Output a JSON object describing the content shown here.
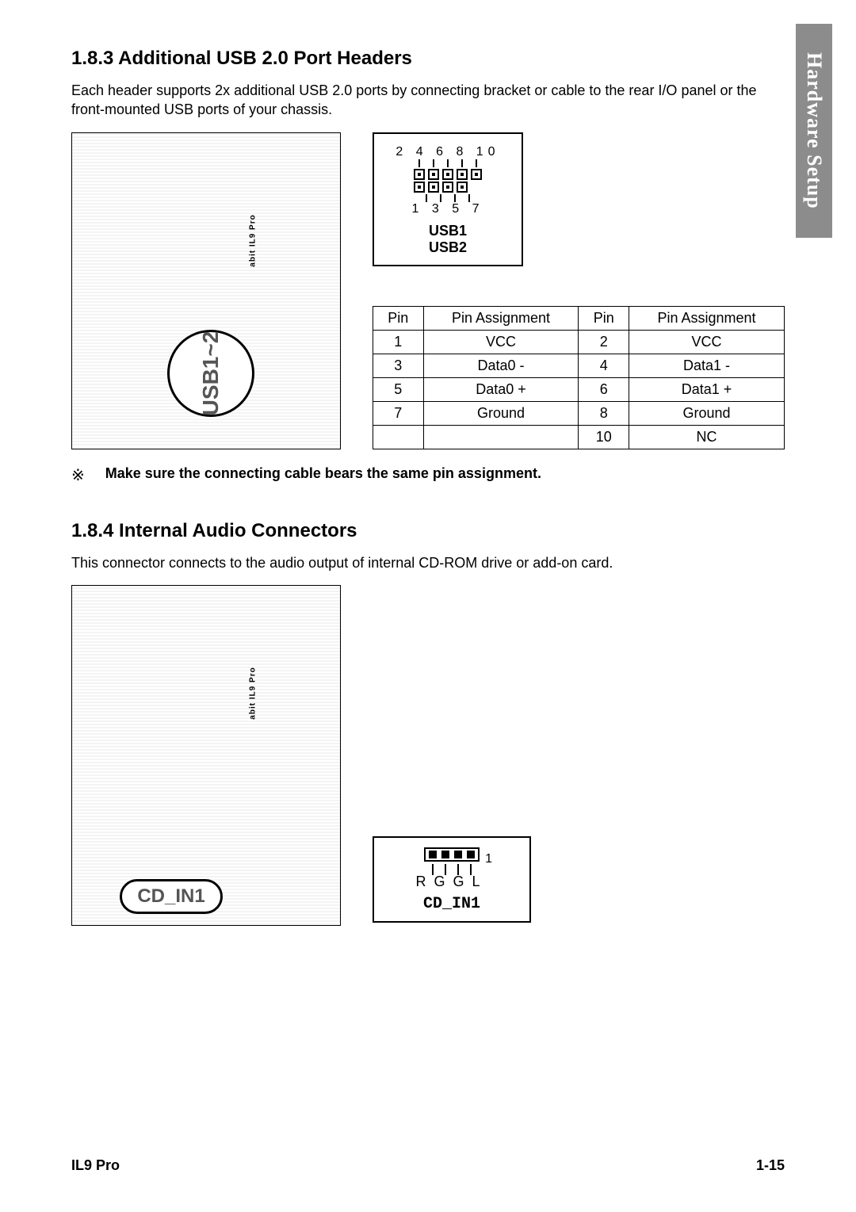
{
  "side_tab": "Hardware Setup",
  "section1": {
    "heading": "1.8.3 Additional USB 2.0 Port Headers",
    "body": "Each header supports 2x additional USB 2.0 ports by connecting bracket or cable to the rear I/O panel or the front-mounted USB ports of your chassis.",
    "callout_label": "USB1~2",
    "mobo_label": "abit IL9 Pro",
    "header_diagram": {
      "top_nums": "2 4 6 8 10",
      "bot_nums": "1 3 5 7",
      "name1": "USB1",
      "name2": "USB2"
    },
    "pin_table": {
      "columns": [
        "Pin",
        "Pin Assignment",
        "Pin",
        "Pin Assignment"
      ],
      "rows": [
        [
          "1",
          "VCC",
          "2",
          "VCC"
        ],
        [
          "3",
          "Data0 -",
          "4",
          "Data1 -"
        ],
        [
          "5",
          "Data0 +",
          "6",
          "Data1 +"
        ],
        [
          "7",
          "Ground",
          "8",
          "Ground"
        ],
        [
          "",
          "",
          "10",
          "NC"
        ]
      ]
    },
    "note_symbol": "※",
    "note_text": "Make sure the connecting cable bears the same pin assignment."
  },
  "section2": {
    "heading": "1.8.4 Internal Audio Connectors",
    "body": "This connector connects to the audio output of internal CD-ROM drive or add-on card.",
    "callout_label": "CD_IN1",
    "mobo_label": "abit IL9 Pro",
    "cd_diagram": {
      "pin1": "1",
      "letters": "RGGL",
      "name": "CD_IN1"
    }
  },
  "footer": {
    "left": "IL9 Pro",
    "right": "1-15"
  },
  "colors": {
    "tab_bg": "#8c8c8c",
    "tab_fg": "#ffffff",
    "border": "#000000",
    "page_bg": "#ffffff"
  }
}
